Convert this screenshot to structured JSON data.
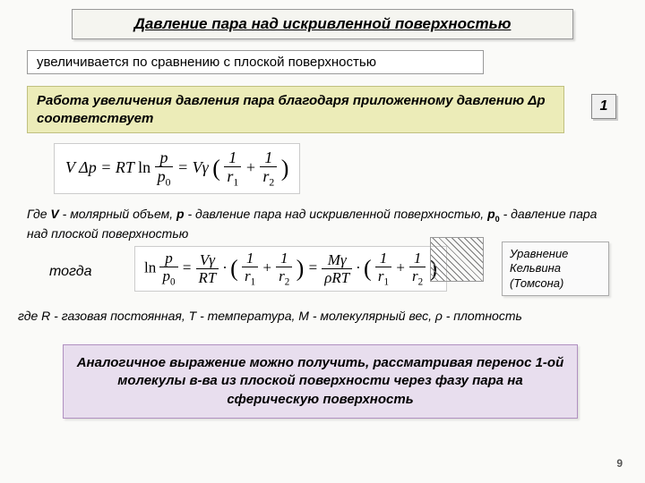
{
  "title": "Давление пара над искривленной поверхностью",
  "subtitle": "увеличивается по сравнению с плоской поверхностью",
  "work_text": "Работа увеличения давления пара благодаря приложенному давлению Δp соответствует",
  "box_number": "1",
  "eq1": {
    "lhs_V": "V",
    "lhs_dp": "Δp",
    "eq": "=",
    "R": "R",
    "T": "T",
    "ln": "ln",
    "p": "p",
    "p0": "p",
    "p0_sub": "0",
    "Vg": "Vγ",
    "r1": "r",
    "r1_sub": "1",
    "r2": "r",
    "r2_sub": "2",
    "one": "1",
    "plus": "+"
  },
  "where1_html": "Где <b>V</b> - молярный объем, <b>p</b> - давление пара над искривленной поверхностью, <b>p<sub>0</sub></b> - давление пара над плоской поверхностью",
  "then": "тогда",
  "eq2": {
    "ln": "ln",
    "p": "p",
    "p0": "p",
    "p0_sub": "0",
    "Vg": "Vγ",
    "RT": "RT",
    "Mg": "Mγ",
    "rhoRT": "ρRT",
    "r1": "r",
    "r1_sub": "1",
    "r2": "r",
    "r2_sub": "2",
    "one": "1",
    "plus": "+",
    "dot": "·",
    "eq": "="
  },
  "kelvin": "Уравнение Кельвина (Томсона)",
  "where2": "где R - газовая постоянная, T - температура, M - молекулярный вес, ρ - плотность",
  "analog": "Аналогичное выражение можно получить, рассматривая перенос 1-ой молекулы в-ва из плоской поверхности через фазу пара на сферическую поверхность",
  "page": "9",
  "colors": {
    "bg": "#fafaf8",
    "work_box_bg": "#ececb8",
    "analog_box_bg": "#e8deee"
  }
}
